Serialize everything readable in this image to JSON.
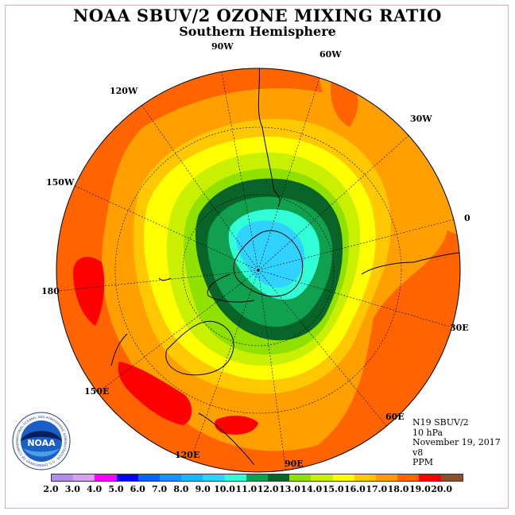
{
  "title": "NOAA SBUV/2 OZONE MIXING RATIO",
  "subtitle": "Southern Hemisphere",
  "longitudes": [
    "90W",
    "60W",
    "30W",
    "0",
    "30E",
    "60E",
    "90E",
    "120E",
    "150E",
    "180",
    "150W",
    "120W"
  ],
  "info": [
    "N19 SBUV/2",
    "10 hPa",
    "November 19, 2017",
    "v8",
    "PPM"
  ],
  "colorbar": {
    "ticks": [
      "2.0",
      "3.0",
      "4.0",
      "5.0",
      "6.0",
      "7.0",
      "8.0",
      "9.0",
      "10.0",
      "11.0",
      "12.0",
      "13.0",
      "14.0",
      "15.0",
      "16.0",
      "17.0",
      "18.0",
      "19.0",
      "20.0"
    ],
    "colors": [
      "#b48cf0",
      "#d8a0f0",
      "#ff00ff",
      "#0000ff",
      "#0a64f0",
      "#1e90ff",
      "#1eb4ff",
      "#30d2ff",
      "#30ffd8",
      "#10a050",
      "#086428",
      "#90e000",
      "#c8f000",
      "#ffff00",
      "#ffc800",
      "#ffa000",
      "#ff6400",
      "#ff0000",
      "#8c5028"
    ]
  },
  "logo": {
    "text": "NOAA",
    "ring_text": "NATIONAL OCEANIC AND ATMOSPHERIC ADMINISTRATION · U.S. DEPARTMENT OF COMMERCE"
  }
}
